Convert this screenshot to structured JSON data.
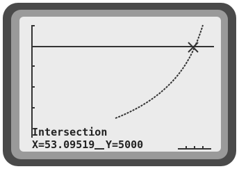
{
  "screen": {
    "label": "Intersection",
    "x_readout": "X=53.09519",
    "y_readout": "Y=5000"
  }
}
